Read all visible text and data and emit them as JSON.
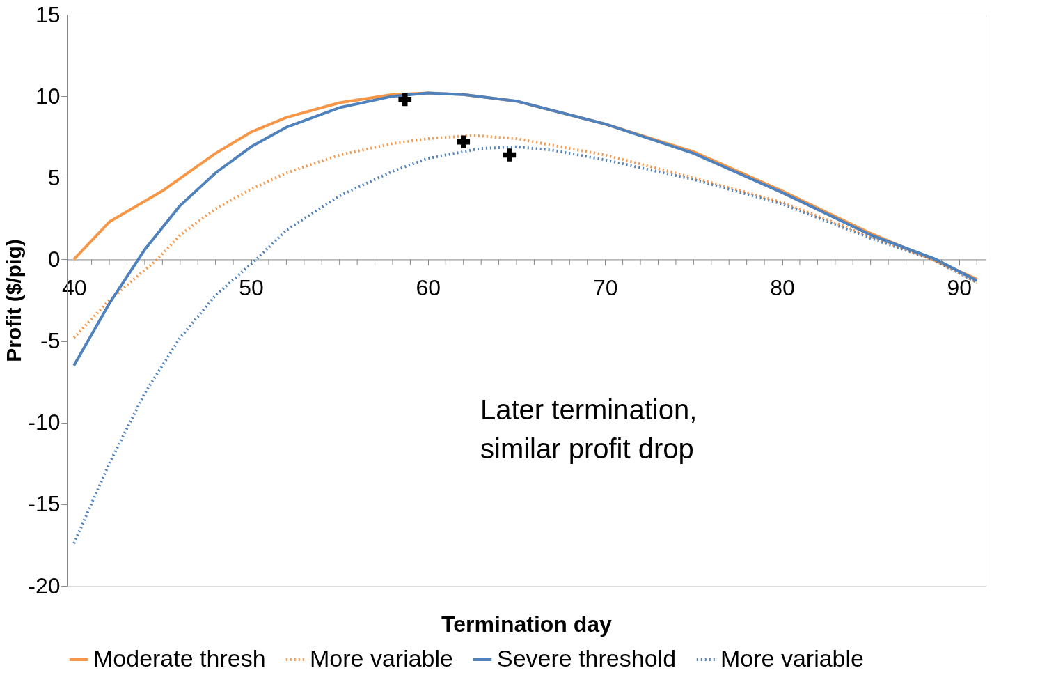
{
  "chart_data": {
    "type": "line",
    "xlabel": "Termination day",
    "ylabel": "Profit ($/pig)",
    "xlim": [
      39.6,
      91.5
    ],
    "ylim": [
      -20,
      15
    ],
    "yticks": [
      -20,
      -15,
      -10,
      -5,
      0,
      5,
      10,
      15
    ],
    "xticks": [
      40,
      {
        "value": 41,
        "label": null
      },
      {
        "value": 42,
        "label": null
      },
      {
        "value": 43,
        "label": null
      },
      {
        "value": 44,
        "label": null
      },
      {
        "value": 45,
        "label": null
      },
      {
        "value": 46,
        "label": null
      },
      {
        "value": 47,
        "label": null
      },
      {
        "value": 48,
        "label": null
      },
      {
        "value": 49,
        "label": null
      },
      50,
      {
        "value": 51,
        "label": null
      },
      {
        "value": 52,
        "label": null
      },
      {
        "value": 53,
        "label": null
      },
      {
        "value": 54,
        "label": null
      },
      {
        "value": 55,
        "label": null
      },
      {
        "value": 56,
        "label": null
      },
      {
        "value": 57,
        "label": null
      },
      {
        "value": 58,
        "label": null
      },
      {
        "value": 59,
        "label": null
      },
      60,
      {
        "value": 61,
        "label": null
      },
      {
        "value": 62,
        "label": null
      },
      {
        "value": 63,
        "label": null
      },
      {
        "value": 64,
        "label": null
      },
      {
        "value": 65,
        "label": null
      },
      {
        "value": 66,
        "label": null
      },
      {
        "value": 67,
        "label": null
      },
      {
        "value": 68,
        "label": null
      },
      {
        "value": 69,
        "label": null
      },
      70,
      {
        "value": 71,
        "label": null
      },
      {
        "value": 72,
        "label": null
      },
      {
        "value": 73,
        "label": null
      },
      {
        "value": 74,
        "label": null
      },
      {
        "value": 75,
        "label": null
      },
      {
        "value": 76,
        "label": null
      },
      {
        "value": 77,
        "label": null
      },
      {
        "value": 78,
        "label": null
      },
      {
        "value": 79,
        "label": null
      },
      80,
      {
        "value": 81,
        "label": null
      },
      {
        "value": 82,
        "label": null
      },
      {
        "value": 83,
        "label": null
      },
      {
        "value": 84,
        "label": null
      },
      {
        "value": 85,
        "label": null
      },
      {
        "value": 86,
        "label": null
      },
      {
        "value": 87,
        "label": null
      },
      {
        "value": 88,
        "label": null
      },
      {
        "value": 89,
        "label": null
      },
      90,
      {
        "value": 91,
        "label": null
      }
    ],
    "grid": false,
    "legend": "bottom",
    "annotations": [
      "Later termination,\nsimilar profit drop"
    ],
    "series": [
      {
        "name": "Moderate thresh",
        "color": "#f79646",
        "line_style": "solid",
        "x": [
          40,
          42,
          45,
          48,
          50,
          52,
          55,
          58,
          60,
          62,
          65,
          70,
          75,
          80,
          85,
          88.5,
          91
        ],
        "values": [
          0,
          2.3,
          4.2,
          6.5,
          7.8,
          8.7,
          9.6,
          10.1,
          10.2,
          10.1,
          9.7,
          8.3,
          6.6,
          4.2,
          1.6,
          0,
          -1.2
        ]
      },
      {
        "name": "More variable",
        "color": "#f79646",
        "line_style": "dotted",
        "x": [
          40,
          42,
          44.7,
          46,
          48,
          50,
          52,
          55,
          58,
          60,
          62.5,
          65,
          70,
          75,
          80,
          85,
          88.5,
          91
        ],
        "values": [
          -4.8,
          -2.5,
          0,
          1.5,
          3.1,
          4.3,
          5.3,
          6.4,
          7.1,
          7.4,
          7.6,
          7.4,
          6.4,
          5.0,
          3.5,
          1.4,
          0,
          -1.4
        ]
      },
      {
        "name": "Severe threshold",
        "color": "#4f81bd",
        "line_style": "solid",
        "x": [
          40,
          42,
          44,
          46,
          48,
          50,
          52,
          55,
          58,
          60,
          62,
          65,
          70,
          75,
          80,
          85,
          88.7,
          91
        ],
        "values": [
          -6.5,
          -2.7,
          0.6,
          3.3,
          5.3,
          6.9,
          8.1,
          9.3,
          10.0,
          10.2,
          10.1,
          9.7,
          8.3,
          6.5,
          4.1,
          1.5,
          0,
          -1.3
        ]
      },
      {
        "name": "More variable",
        "color": "#4f81bd",
        "line_style": "dotted",
        "x": [
          40,
          42,
          44,
          46,
          48,
          50.3,
          52,
          55,
          58,
          60,
          63,
          65,
          67,
          70,
          75,
          80,
          85,
          88.5,
          91
        ],
        "values": [
          -17.4,
          -12.5,
          -8.2,
          -4.8,
          -2.2,
          0,
          1.8,
          3.9,
          5.4,
          6.2,
          6.8,
          6.9,
          6.7,
          6.1,
          4.9,
          3.4,
          1.3,
          0,
          -1.4
        ]
      },
      {
        "type": "scatter",
        "marker": "cross",
        "color": "#000000",
        "x": [
          58.7,
          62.0,
          64.6
        ],
        "values": [
          9.8,
          7.2,
          6.4
        ]
      }
    ]
  }
}
